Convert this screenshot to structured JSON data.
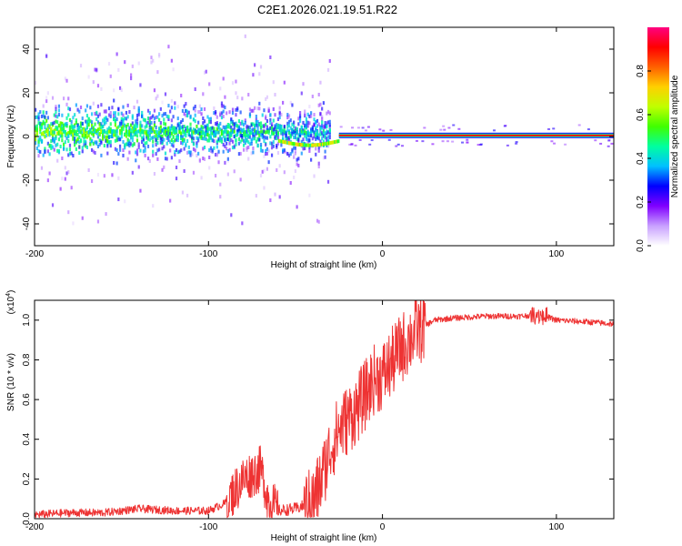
{
  "title": "C2E1.2026.021.19.51.R22",
  "chart_data": [
    {
      "type": "heatmap",
      "xlabel": "Height of straight line (km)",
      "ylabel": "Frequency (Hz)",
      "xlim": [
        -200,
        133
      ],
      "ylim": [
        -50,
        50
      ],
      "xticks": [
        -200,
        -100,
        0,
        100
      ],
      "yticks": [
        -40,
        -20,
        0,
        20,
        40
      ],
      "colorbar": {
        "label": "Normalized spectral amplitude",
        "range": [
          0,
          1
        ],
        "ticks": [
          "0.0",
          "0.2",
          "0.4",
          "0.6",
          "0.8"
        ],
        "colors": [
          "#ffffff",
          "#c8a0ff",
          "#8000ff",
          "#0000ff",
          "#00c0ff",
          "#00ffa0",
          "#40ff00",
          "#c0ff00",
          "#ffd000",
          "#ff6000",
          "#ff0000",
          "#ff0080"
        ]
      },
      "features": {
        "noisy_band_x_range": [
          -200,
          -30
        ],
        "noisy_band_center_freq": 2,
        "steady_tone_x_range": [
          -25,
          133
        ],
        "steady_tone_freq": 0.5
      }
    },
    {
      "type": "line",
      "xlabel": "Height of straight line (km)",
      "ylabel": "SNR (10 * v/v)",
      "y_exponent_label": "(x10",
      "y_exponent_power": "4",
      "y_exponent_close": ")",
      "xlim": [
        -200,
        133
      ],
      "ylim": [
        0,
        1.1
      ],
      "xticks": [
        -200,
        -100,
        0,
        100
      ],
      "yticks": [
        "0.0",
        "0.2",
        "0.4",
        "0.6",
        "0.8",
        "1.0"
      ],
      "color": "#ee3333",
      "series": [
        {
          "name": "SNR",
          "x": [
            -200,
            -180,
            -160,
            -140,
            -120,
            -100,
            -90,
            -80,
            -70,
            -65,
            -60,
            -50,
            -40,
            -35,
            -30,
            -25,
            -20,
            -15,
            -10,
            -5,
            0,
            5,
            10,
            15,
            20,
            30,
            40,
            60,
            80,
            90,
            100,
            120,
            133
          ],
          "y": [
            0.02,
            0.03,
            0.03,
            0.05,
            0.04,
            0.04,
            0.08,
            0.2,
            0.25,
            0.08,
            0.04,
            0.05,
            0.08,
            0.2,
            0.35,
            0.45,
            0.5,
            0.55,
            0.62,
            0.7,
            0.72,
            0.78,
            0.85,
            0.9,
            0.95,
            1.0,
            1.01,
            1.02,
            1.02,
            1.03,
            1.0,
            0.99,
            0.98
          ]
        }
      ]
    }
  ]
}
